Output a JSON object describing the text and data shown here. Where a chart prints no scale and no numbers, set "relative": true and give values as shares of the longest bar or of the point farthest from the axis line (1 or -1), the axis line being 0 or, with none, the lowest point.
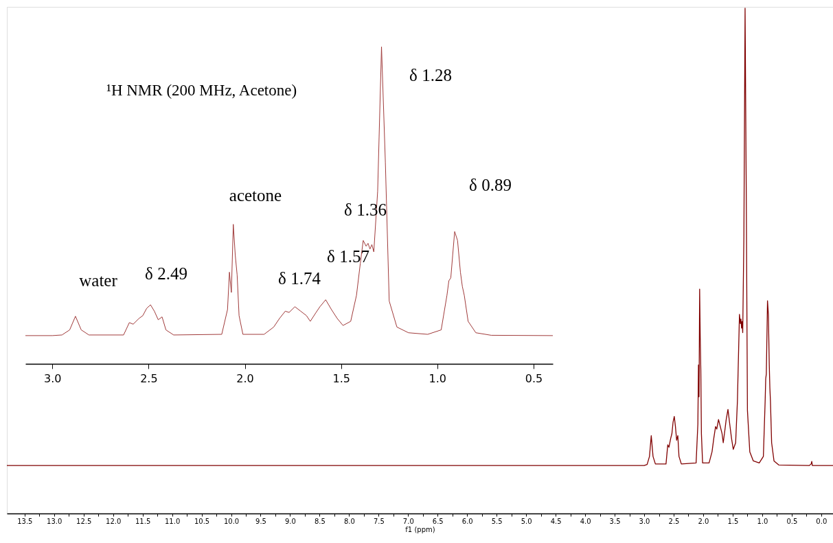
{
  "chart_data": [
    {
      "type": "line",
      "relative": true,
      "xlabel": "f1 (ppm)",
      "xlim": [
        13.8,
        -0.2
      ],
      "grid": false,
      "marker": "none",
      "line_style": "solid",
      "tick_labels": "x",
      "xticks": [
        {
          "value": 13.5,
          "label": "13.5"
        },
        {
          "value": 13.25,
          "label": null
        },
        {
          "value": 13,
          "label": "13.0"
        },
        {
          "value": 12.75,
          "label": null
        },
        {
          "value": 12.5,
          "label": "12.5"
        },
        {
          "value": 12.25,
          "label": null
        },
        {
          "value": 12,
          "label": "12.0"
        },
        {
          "value": 11.75,
          "label": null
        },
        {
          "value": 11.5,
          "label": "11.5"
        },
        {
          "value": 11.25,
          "label": null
        },
        {
          "value": 11,
          "label": "11.0"
        },
        {
          "value": 10.75,
          "label": null
        },
        {
          "value": 10.5,
          "label": "10.5"
        },
        {
          "value": 10.25,
          "label": null
        },
        {
          "value": 10,
          "label": "10.0"
        },
        {
          "value": 9.75,
          "label": null
        },
        {
          "value": 9.5,
          "label": "9.5"
        },
        {
          "value": 9.25,
          "label": null
        },
        {
          "value": 9,
          "label": "9.0"
        },
        {
          "value": 8.75,
          "label": null
        },
        {
          "value": 8.5,
          "label": "8.5"
        },
        {
          "value": 8.25,
          "label": null
        },
        {
          "value": 8,
          "label": "8.0"
        },
        {
          "value": 7.75,
          "label": null
        },
        {
          "value": 7.5,
          "label": "7.5"
        },
        {
          "value": 7.25,
          "label": null
        },
        {
          "value": 7,
          "label": "7.0"
        },
        {
          "value": 6.75,
          "label": null
        },
        {
          "value": 6.5,
          "label": "6.5"
        },
        {
          "value": 6.25,
          "label": null
        },
        {
          "value": 6,
          "label": "6.0"
        },
        {
          "value": 5.75,
          "label": null
        },
        {
          "value": 5.5,
          "label": "5.5"
        },
        {
          "value": 5.25,
          "label": null
        },
        {
          "value": 5,
          "label": "5.0"
        },
        {
          "value": 4.75,
          "label": null
        },
        {
          "value": 4.5,
          "label": "4.5"
        },
        {
          "value": 4.25,
          "label": null
        },
        {
          "value": 4,
          "label": "4.0"
        },
        {
          "value": 3.75,
          "label": null
        },
        {
          "value": 3.5,
          "label": "3.5"
        },
        {
          "value": 3.25,
          "label": null
        },
        {
          "value": 3,
          "label": "3.0"
        },
        {
          "value": 2.75,
          "label": null
        },
        {
          "value": 2.5,
          "label": "2.5"
        },
        {
          "value": 2.25,
          "label": null
        },
        {
          "value": 2,
          "label": "2.0"
        },
        {
          "value": 1.75,
          "label": null
        },
        {
          "value": 1.5,
          "label": "1.5"
        },
        {
          "value": 1.25,
          "label": null
        },
        {
          "value": 1,
          "label": "1.0"
        },
        {
          "value": 0.75,
          "label": null
        },
        {
          "value": 0.5,
          "label": "0.5"
        },
        {
          "value": 0.25,
          "label": null
        },
        {
          "value": 0,
          "label": "0.0"
        }
      ],
      "x": [
        13.8,
        3.0,
        2.95,
        2.91,
        2.88,
        2.85,
        2.81,
        2.63,
        2.6,
        2.58,
        2.55,
        2.53,
        2.51,
        2.49,
        2.47,
        2.45,
        2.43,
        2.41,
        2.37,
        2.12,
        2.09,
        2.08,
        2.07,
        2.06,
        2.05,
        2.04,
        2.03,
        2.01,
        1.9,
        1.85,
        1.82,
        1.79,
        1.77,
        1.74,
        1.71,
        1.68,
        1.66,
        1.63,
        1.61,
        1.58,
        1.55,
        1.52,
        1.49,
        1.45,
        1.42,
        1.4,
        1.385,
        1.37,
        1.36,
        1.35,
        1.34,
        1.33,
        1.31,
        1.29,
        1.27,
        1.25,
        1.21,
        1.15,
        1.05,
        0.98,
        0.95,
        0.94,
        0.93,
        0.92,
        0.91,
        0.895,
        0.88,
        0.87,
        0.86,
        0.84,
        0.8,
        0.72,
        0.2,
        0.17,
        0.16,
        0.15,
        -0.2
      ],
      "series": [
        {
          "color": "#800000",
          "values": [
            0.095,
            0.095,
            0.097,
            0.113,
            0.154,
            0.113,
            0.098,
            0.098,
            0.136,
            0.131,
            0.149,
            0.158,
            0.181,
            0.192,
            0.172,
            0.145,
            0.154,
            0.113,
            0.098,
            0.1,
            0.177,
            0.294,
            0.231,
            0.444,
            0.348,
            0.285,
            0.158,
            0.1,
            0.1,
            0.122,
            0.149,
            0.172,
            0.167,
            0.186,
            0.172,
            0.158,
            0.14,
            0.167,
            0.186,
            0.206,
            0.177,
            0.149,
            0.127,
            0.14,
            0.222,
            0.321,
            0.394,
            0.376,
            0.385,
            0.367,
            0.38,
            0.358,
            0.548,
            1.0,
            0.638,
            0.204,
            0.122,
            0.104,
            0.1,
            0.113,
            0.222,
            0.267,
            0.276,
            0.348,
            0.421,
            0.394,
            0.294,
            0.249,
            0.222,
            0.14,
            0.104,
            0.096,
            0.095,
            0.098,
            0.103,
            0.095,
            0.095
          ]
        }
      ]
    },
    {
      "type": "line",
      "relative": true,
      "title": "¹H NMR (200 MHz, Acetone)",
      "xlim": [
        3.14,
        0.4
      ],
      "grid": false,
      "marker": "none",
      "line_style": "solid",
      "tick_labels": "x",
      "xticks": [
        {
          "value": 3,
          "label": "3.0"
        },
        {
          "value": 2.5,
          "label": "2.5"
        },
        {
          "value": 2,
          "label": "2.0"
        },
        {
          "value": 1.5,
          "label": "1.5"
        },
        {
          "value": 1,
          "label": "1.0"
        },
        {
          "value": 0.5,
          "label": "0.5"
        }
      ],
      "x": [
        3.14,
        3.0,
        2.95,
        2.91,
        2.88,
        2.85,
        2.81,
        2.63,
        2.6,
        2.58,
        2.55,
        2.53,
        2.51,
        2.49,
        2.47,
        2.45,
        2.43,
        2.41,
        2.37,
        2.12,
        2.09,
        2.08,
        2.07,
        2.06,
        2.05,
        2.04,
        2.03,
        2.01,
        1.9,
        1.85,
        1.82,
        1.79,
        1.77,
        1.74,
        1.71,
        1.68,
        1.66,
        1.63,
        1.61,
        1.58,
        1.55,
        1.52,
        1.49,
        1.45,
        1.42,
        1.4,
        1.385,
        1.37,
        1.36,
        1.35,
        1.34,
        1.33,
        1.31,
        1.29,
        1.27,
        1.25,
        1.21,
        1.15,
        1.05,
        0.98,
        0.95,
        0.94,
        0.93,
        0.92,
        0.91,
        0.895,
        0.88,
        0.87,
        0.86,
        0.84,
        0.8,
        0.72,
        0.4
      ],
      "series": [
        {
          "color": "#a03a3a",
          "values": [
            0.089,
            0.089,
            0.091,
            0.107,
            0.15,
            0.107,
            0.091,
            0.091,
            0.13,
            0.125,
            0.143,
            0.152,
            0.175,
            0.186,
            0.166,
            0.139,
            0.148,
            0.107,
            0.091,
            0.093,
            0.171,
            0.289,
            0.225,
            0.44,
            0.344,
            0.28,
            0.152,
            0.093,
            0.093,
            0.116,
            0.143,
            0.166,
            0.162,
            0.18,
            0.166,
            0.152,
            0.134,
            0.162,
            0.18,
            0.202,
            0.171,
            0.143,
            0.121,
            0.134,
            0.216,
            0.317,
            0.389,
            0.371,
            0.38,
            0.362,
            0.376,
            0.353,
            0.544,
            1.0,
            0.636,
            0.198,
            0.116,
            0.098,
            0.093,
            0.107,
            0.216,
            0.262,
            0.271,
            0.344,
            0.417,
            0.389,
            0.289,
            0.244,
            0.216,
            0.134,
            0.098,
            0.09,
            0.089
          ]
        }
      ],
      "annotations": [
        "water",
        "δ 2.49",
        "acetone",
        "δ 1.74",
        "δ 1.57",
        "δ 1.36",
        "δ 1.28",
        "δ 0.89"
      ]
    }
  ]
}
